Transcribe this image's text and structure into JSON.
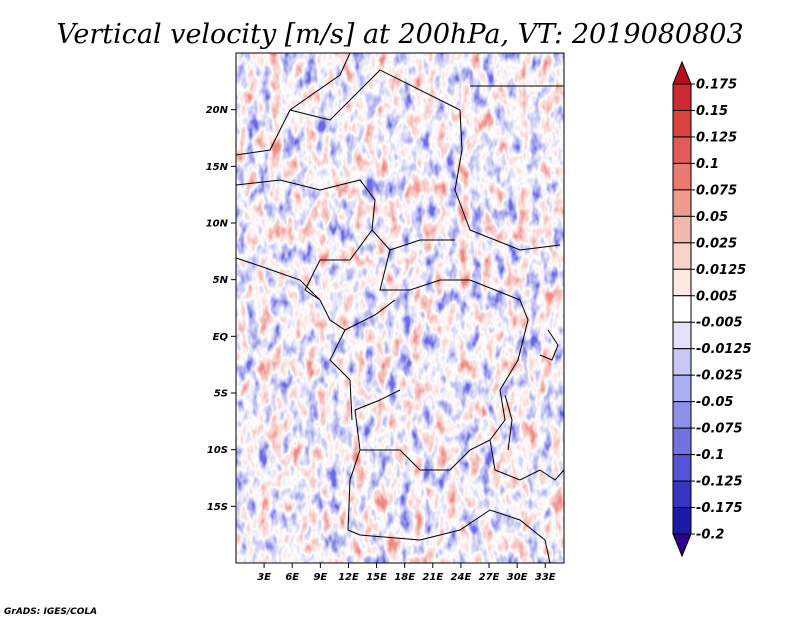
{
  "chart_data": {
    "type": "heatmap",
    "title": "Vertical velocity [m/s] at 200hPa, VT: 2019080803",
    "variable": "Vertical velocity",
    "units": "m/s",
    "level": "200hPa",
    "valid_time": "2019080803",
    "x_range": [
      0,
      35
    ],
    "y_range": [
      -20,
      25
    ],
    "x_tick_values": [
      3,
      6,
      9,
      12,
      15,
      18,
      21,
      24,
      27,
      30,
      33
    ],
    "x_tick_labels": [
      "3E",
      "6E",
      "9E",
      "12E",
      "15E",
      "18E",
      "21E",
      "24E",
      "27E",
      "30E",
      "33E"
    ],
    "y_tick_values": [
      20,
      15,
      10,
      5,
      0,
      -5,
      -10,
      -15
    ],
    "y_tick_labels": [
      "20N",
      "15N",
      "10N",
      "5N",
      "EQ",
      "5S",
      "10S",
      "15S"
    ],
    "colorbar": {
      "labels": [
        "0.175",
        "0.15",
        "0.125",
        "0.1",
        "0.075",
        "0.05",
        "0.025",
        "0.0125",
        "0.005",
        "-0.005",
        "-0.0125",
        "-0.025",
        "-0.05",
        "-0.075",
        "-0.1",
        "-0.125",
        "-0.175",
        "-0.2"
      ],
      "colors": [
        "#b80f1e",
        "#cc2b33",
        "#d8423f",
        "#e15c58",
        "#e87a72",
        "#ef9a8f",
        "#f4b7ac",
        "#f9d2ca",
        "#fde8e3",
        "#ffffff",
        "#e2e2fb",
        "#c8c8f6",
        "#adadf2",
        "#9090ec",
        "#7272e5",
        "#5454d8",
        "#3535c2",
        "#1a1aa6",
        "#2c008a"
      ]
    },
    "legend_position": "right"
  },
  "credit": "GrADS: IGES/COLA"
}
